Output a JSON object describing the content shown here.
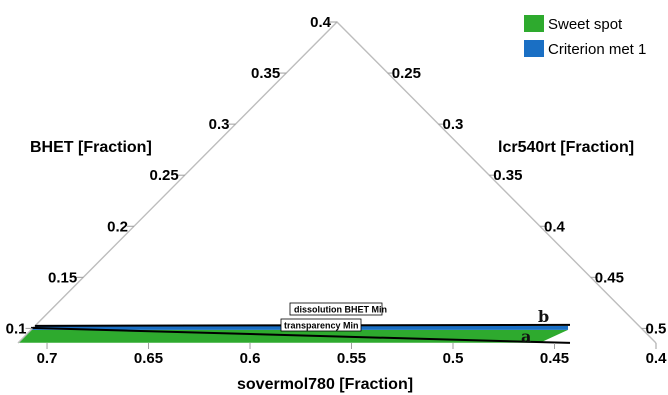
{
  "chart_data": {
    "type": "ternary",
    "axes": {
      "left": {
        "label": "BHET [Fraction]",
        "ticks": [
          "0.4",
          "0.35",
          "0.3",
          "0.25",
          "0.2",
          "0.15",
          "0.1"
        ]
      },
      "right": {
        "label": "lcr540rt [Fraction]",
        "ticks": [
          "0.25",
          "0.3",
          "0.35",
          "0.4",
          "0.45",
          "0.5"
        ]
      },
      "bottom": {
        "label": "sovermol780 [Fraction]",
        "ticks": [
          "0.7",
          "0.65",
          "0.6",
          "0.55",
          "0.5",
          "0.45",
          "0.4"
        ]
      }
    },
    "legend": {
      "placement": "top-right",
      "entries": [
        {
          "label": "Sweet spot",
          "color": "#2eaa2e"
        },
        {
          "label": "Criterion met 1",
          "color": "#1a6fc4"
        }
      ]
    },
    "contours": [
      {
        "label": "dissolution BHET Min",
        "bhet": 0.1025,
        "color": "#000000"
      },
      {
        "label": "transparency Min",
        "bhet": 0.0985,
        "color": "#000000"
      }
    ],
    "regions": [
      {
        "name": "Sweet spot",
        "letter": "a",
        "color": "#2eaa2e",
        "bhet_range": [
          0.086,
          0.0985
        ]
      },
      {
        "name": "Criterion met 1",
        "letter": "b",
        "color": "#1a6fc4",
        "bhet_range": [
          0.0985,
          0.1025
        ]
      }
    ]
  }
}
